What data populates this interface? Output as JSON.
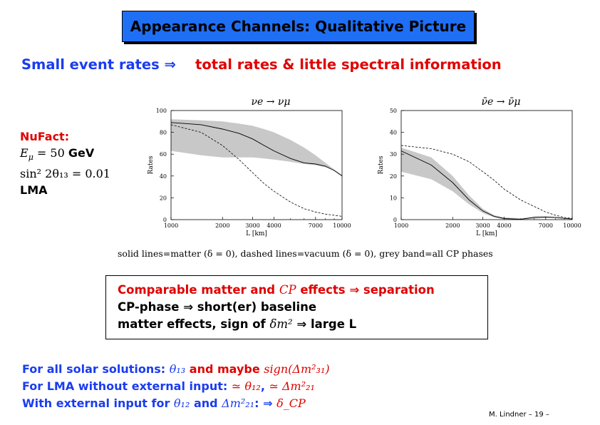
{
  "title": "Appearance Channels: Qualitative Picture",
  "headline": {
    "left": "Small event rates ⇒",
    "right": "total rates & little spectral information"
  },
  "side": {
    "label": "NuFact:",
    "energy_math": "E",
    "energy_sub": "μ",
    "energy_rest": " = 50 ",
    "energy_unit": "GeV",
    "angle": "sin² 2θ₁₃ = 0.01",
    "lma": "LMA"
  },
  "charts": [
    {
      "title": "νe → νμ",
      "ylabel": "Rates",
      "xlabel": "L [km]",
      "yticks": [
        "0",
        "20",
        "40",
        "60",
        "80",
        "100"
      ],
      "xticks": [
        "1000",
        "2000",
        "3000",
        "4000",
        "7000",
        "10000"
      ]
    },
    {
      "title": "ν̄e → ν̄μ",
      "ylabel": "Rates",
      "xlabel": "L [km]",
      "yticks": [
        "0",
        "10",
        "20",
        "30",
        "40",
        "50"
      ],
      "xticks": [
        "1000",
        "2000",
        "3000",
        "4000",
        "7000",
        "10000"
      ]
    }
  ],
  "chart_data": [
    {
      "type": "line",
      "title": "νe → νμ",
      "xlabel": "L [km]",
      "ylabel": "Rates",
      "xscale": "log",
      "xlim": [
        1000,
        10000
      ],
      "ylim": [
        0,
        100
      ],
      "x": [
        1000,
        1500,
        2000,
        2500,
        3000,
        3500,
        4000,
        5000,
        6000,
        7000,
        8000,
        9000,
        10000
      ],
      "series": [
        {
          "role": "matter",
          "line": "solid",
          "values": [
            89,
            87,
            83,
            79,
            74,
            68,
            63,
            56,
            52,
            51,
            49,
            45,
            40
          ]
        },
        {
          "role": "vacuum",
          "line": "dashed",
          "values": [
            87,
            80,
            68,
            55,
            43,
            33,
            26,
            16,
            10,
            7,
            5,
            4,
            3
          ]
        },
        {
          "role": "band_upper",
          "values": [
            92,
            91,
            90,
            88,
            86,
            83,
            80,
            73,
            66,
            59,
            52,
            46,
            41
          ]
        },
        {
          "role": "band_lower",
          "values": [
            63,
            59,
            57,
            57,
            57,
            56,
            55,
            53,
            51,
            50,
            48,
            45,
            40
          ]
        }
      ]
    },
    {
      "type": "line",
      "title": "ν̄e → ν̄μ",
      "xlabel": "L [km]",
      "ylabel": "Rates",
      "xscale": "log",
      "xlim": [
        1000,
        10000
      ],
      "ylim": [
        0,
        50
      ],
      "x": [
        1000,
        1500,
        2000,
        2500,
        3000,
        3500,
        4000,
        5000,
        6000,
        7000,
        8000,
        9000,
        10000
      ],
      "series": [
        {
          "role": "matter",
          "line": "solid",
          "values": [
            31.5,
            25,
            17,
            9,
            4,
            1.5,
            0.5,
            0.2,
            1,
            1.2,
            1,
            0.6,
            0.3
          ]
        },
        {
          "role": "vacuum",
          "line": "dashed",
          "values": [
            34,
            32.5,
            30,
            26.5,
            22,
            18,
            14,
            9,
            6,
            3.5,
            2,
            1,
            0.5
          ]
        },
        {
          "role": "band_upper",
          "values": [
            33,
            28.5,
            20,
            11,
            5,
            2,
            1,
            0.6,
            1.5,
            1.5,
            1.2,
            0.8,
            0.4
          ]
        },
        {
          "role": "band_lower",
          "values": [
            22,
            18.5,
            13,
            7,
            3,
            1,
            0.2,
            0,
            0.5,
            0.8,
            0.7,
            0.4,
            0.2
          ]
        }
      ]
    }
  ],
  "caption": "solid lines=matter (δ = 0), dashed lines=vacuum (δ = 0), grey band=all CP phases",
  "box": {
    "line1_a": "Comparable matter and ",
    "line1_cp": "CP",
    "line1_b": " effects ⇒   separation",
    "line2": "CP-phase ⇒   short(er) baseline",
    "line3_a": "matter effects, sign of ",
    "line3_math": "δm²",
    "line3_b": " ⇒   large L"
  },
  "solar": {
    "l1_a": "For all solar solutions: ",
    "l1_m1": "θ₁₃",
    "l1_b": "  and maybe ",
    "l1_m2": "sign(Δm²₃₁)",
    "l2_a": "For LMA without external input: ",
    "l2_m1": "≃ θ₁₂",
    "l2_b": ", ",
    "l2_m2": "≃ Δm²₂₁",
    "l3_a": "With external input for ",
    "l3_m1": "θ₁₂",
    "l3_b": " and ",
    "l3_m2": "Δm²₂₁",
    "l3_c": ": ⇒   ",
    "l3_m3": "δ_CP"
  },
  "footer": "M. Lindner   –  19  –",
  "colors": {
    "title_bg": "#1f6ff5",
    "blue_text": "#1a3cf0",
    "red_text": "#e00000",
    "band": "#c8c8c8"
  }
}
